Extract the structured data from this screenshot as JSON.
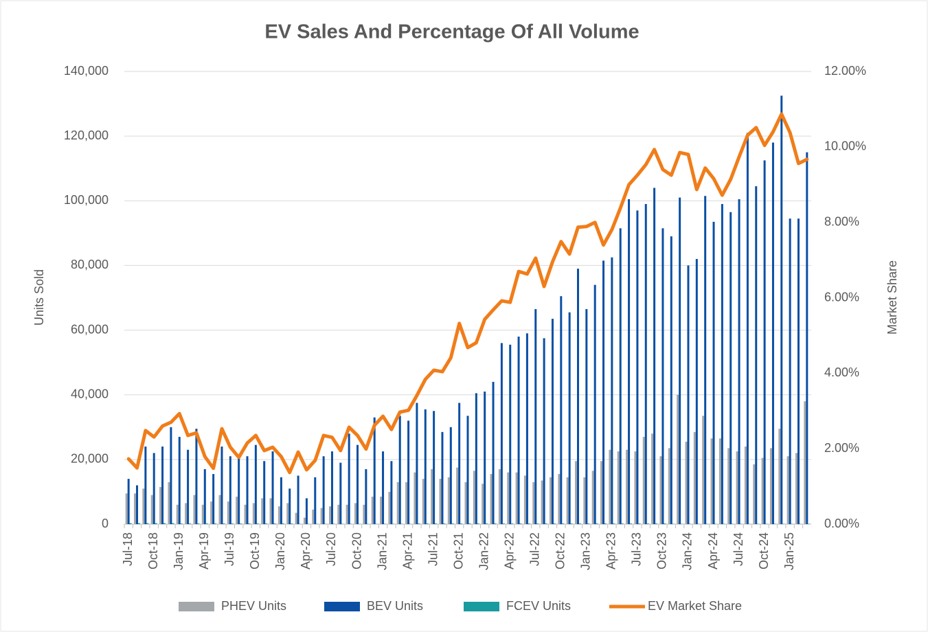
{
  "chart_data": {
    "type": "bar_line",
    "title": "EV Sales And Percentage Of All Volume",
    "y_label": "Units Sold",
    "y2_label": "Market Share",
    "categories": [
      "Jul-18",
      null,
      null,
      "Oct-18",
      null,
      null,
      "Jan-19",
      null,
      null,
      "Apr-19",
      null,
      null,
      "Jul-19",
      null,
      null,
      "Oct-19",
      null,
      null,
      "Jan-20",
      null,
      null,
      "Apr-20",
      null,
      null,
      "Jul-20",
      null,
      null,
      "Oct-20",
      null,
      null,
      "Jan-21",
      null,
      null,
      "Apr-21",
      null,
      null,
      "Jul-21",
      null,
      null,
      "Oct-21",
      null,
      null,
      "Jan-22",
      null,
      null,
      "Apr-22",
      null,
      null,
      "Jul-22",
      null,
      null,
      "Oct-22",
      null,
      null,
      "Jan-23",
      null,
      null,
      "Apr-23",
      null,
      null,
      "Jul-23",
      null,
      null,
      "Oct-23",
      null,
      null,
      "Jan-24",
      null,
      null,
      "Apr-24",
      null,
      null,
      "Jul-24",
      null,
      null,
      "Oct-24",
      null,
      null,
      "Jan-25",
      null,
      null
    ],
    "series": [
      {
        "name": "PHEV Units",
        "type": "bar",
        "color": "#a5a8ab",
        "values": [
          9500,
          9500,
          11000,
          9000,
          11500,
          13000,
          6000,
          6500,
          9000,
          6000,
          7000,
          9000,
          7000,
          8500,
          6000,
          6500,
          8000,
          8000,
          5500,
          6500,
          3500,
          2000,
          4500,
          5000,
          5500,
          6000,
          6000,
          6500,
          6000,
          8500,
          8500,
          10000,
          13000,
          13000,
          16000,
          14000,
          17000,
          14000,
          14500,
          17500,
          13000,
          16500,
          12500,
          15500,
          17000,
          16000,
          16000,
          15000,
          13000,
          13500,
          14500,
          15500,
          14500,
          19500,
          14500,
          16500,
          19500,
          23000,
          22500,
          23000,
          22500,
          27000,
          28000,
          21000,
          23500,
          40000,
          25500,
          28500,
          33500,
          26500,
          26500,
          23500,
          22500,
          24000,
          18500,
          20500,
          23500,
          29500,
          21000,
          22000,
          38000
        ]
      },
      {
        "name": "BEV Units",
        "type": "bar",
        "color": "#0a4fa4",
        "values": [
          14000,
          12000,
          24000,
          22000,
          24000,
          30000,
          27000,
          23000,
          29500,
          17000,
          15500,
          24000,
          21000,
          20500,
          21000,
          24500,
          19500,
          22500,
          14500,
          11000,
          15000,
          8000,
          14500,
          21000,
          22500,
          19000,
          28000,
          24500,
          17000,
          33000,
          22500,
          19500,
          33500,
          32000,
          37500,
          35500,
          35000,
          28500,
          30000,
          37500,
          33500,
          40500,
          41000,
          44000,
          56000,
          55500,
          58000,
          59000,
          66500,
          57500,
          63500,
          70500,
          65500,
          79000,
          66500,
          74000,
          81500,
          82500,
          91500,
          100500,
          97000,
          99000,
          104000,
          91500,
          89000,
          101000,
          80000,
          82000,
          101500,
          93500,
          99000,
          96500,
          100500,
          121000,
          104500,
          112500,
          118000,
          132500,
          94500,
          94500,
          115000
        ]
      },
      {
        "name": "FCEV Units",
        "type": "bar",
        "color": "#1a9ba0",
        "values": [
          300,
          300,
          300,
          300,
          300,
          300,
          200,
          200,
          200,
          200,
          200,
          200,
          200,
          200,
          200,
          200,
          200,
          200,
          200,
          200,
          100,
          100,
          100,
          100,
          100,
          100,
          100,
          100,
          100,
          100,
          100,
          100,
          100,
          100,
          200,
          200,
          200,
          200,
          200,
          200,
          200,
          200,
          200,
          200,
          200,
          200,
          200,
          200,
          200,
          200,
          200,
          200,
          200,
          200,
          200,
          200,
          200,
          200,
          200,
          200,
          200,
          200,
          200,
          200,
          100,
          100,
          100,
          100,
          100,
          100,
          100,
          100,
          100,
          100,
          100,
          100,
          100,
          100,
          100,
          100,
          100
        ]
      },
      {
        "name": "EV Market Share",
        "type": "line",
        "axis": "y2",
        "color": "#f07d1a",
        "values": [
          1.73,
          1.49,
          2.48,
          2.31,
          2.6,
          2.7,
          2.93,
          2.35,
          2.42,
          1.79,
          1.48,
          2.53,
          2.04,
          1.77,
          2.15,
          2.35,
          1.95,
          2.04,
          1.79,
          1.37,
          1.91,
          1.44,
          1.69,
          2.35,
          2.3,
          1.95,
          2.57,
          2.35,
          1.99,
          2.62,
          2.86,
          2.51,
          2.97,
          3.02,
          3.41,
          3.84,
          4.08,
          4.04,
          4.41,
          5.32,
          4.68,
          4.81,
          5.43,
          5.68,
          5.92,
          5.88,
          6.7,
          6.63,
          7.05,
          6.3,
          6.96,
          7.49,
          7.16,
          7.87,
          7.89,
          8.0,
          7.4,
          7.81,
          8.38,
          9.0,
          9.25,
          9.53,
          9.93,
          9.4,
          9.25,
          9.85,
          9.8,
          8.87,
          9.44,
          9.16,
          8.72,
          9.14,
          9.74,
          10.31,
          10.51,
          10.04,
          10.4,
          10.87,
          10.38,
          9.56,
          9.67
        ]
      }
    ],
    "ylim": [
      0,
      140000
    ],
    "yticks": [
      0,
      {
        "value": 20000,
        "label": "20,000"
      },
      {
        "value": 40000,
        "label": "40,000"
      },
      {
        "value": 60000,
        "label": "60,000"
      },
      {
        "value": 80000,
        "label": "80,000"
      },
      {
        "value": 100000,
        "label": "100,000"
      },
      {
        "value": 120000,
        "label": "120,000"
      },
      {
        "value": 140000,
        "label": "140,000"
      }
    ],
    "y2lim": [
      0,
      12
    ],
    "y2ticks": [
      {
        "value": 0,
        "label": "0.00%"
      },
      {
        "value": 2,
        "label": "2.00%"
      },
      {
        "value": 4,
        "label": "4.00%"
      },
      {
        "value": 6,
        "label": "6.00%"
      },
      {
        "value": 8,
        "label": "8.00%"
      },
      {
        "value": 10,
        "label": "10.00%"
      },
      {
        "value": 12,
        "label": "12.00%"
      }
    ],
    "grid": true,
    "legend": "bottom"
  }
}
